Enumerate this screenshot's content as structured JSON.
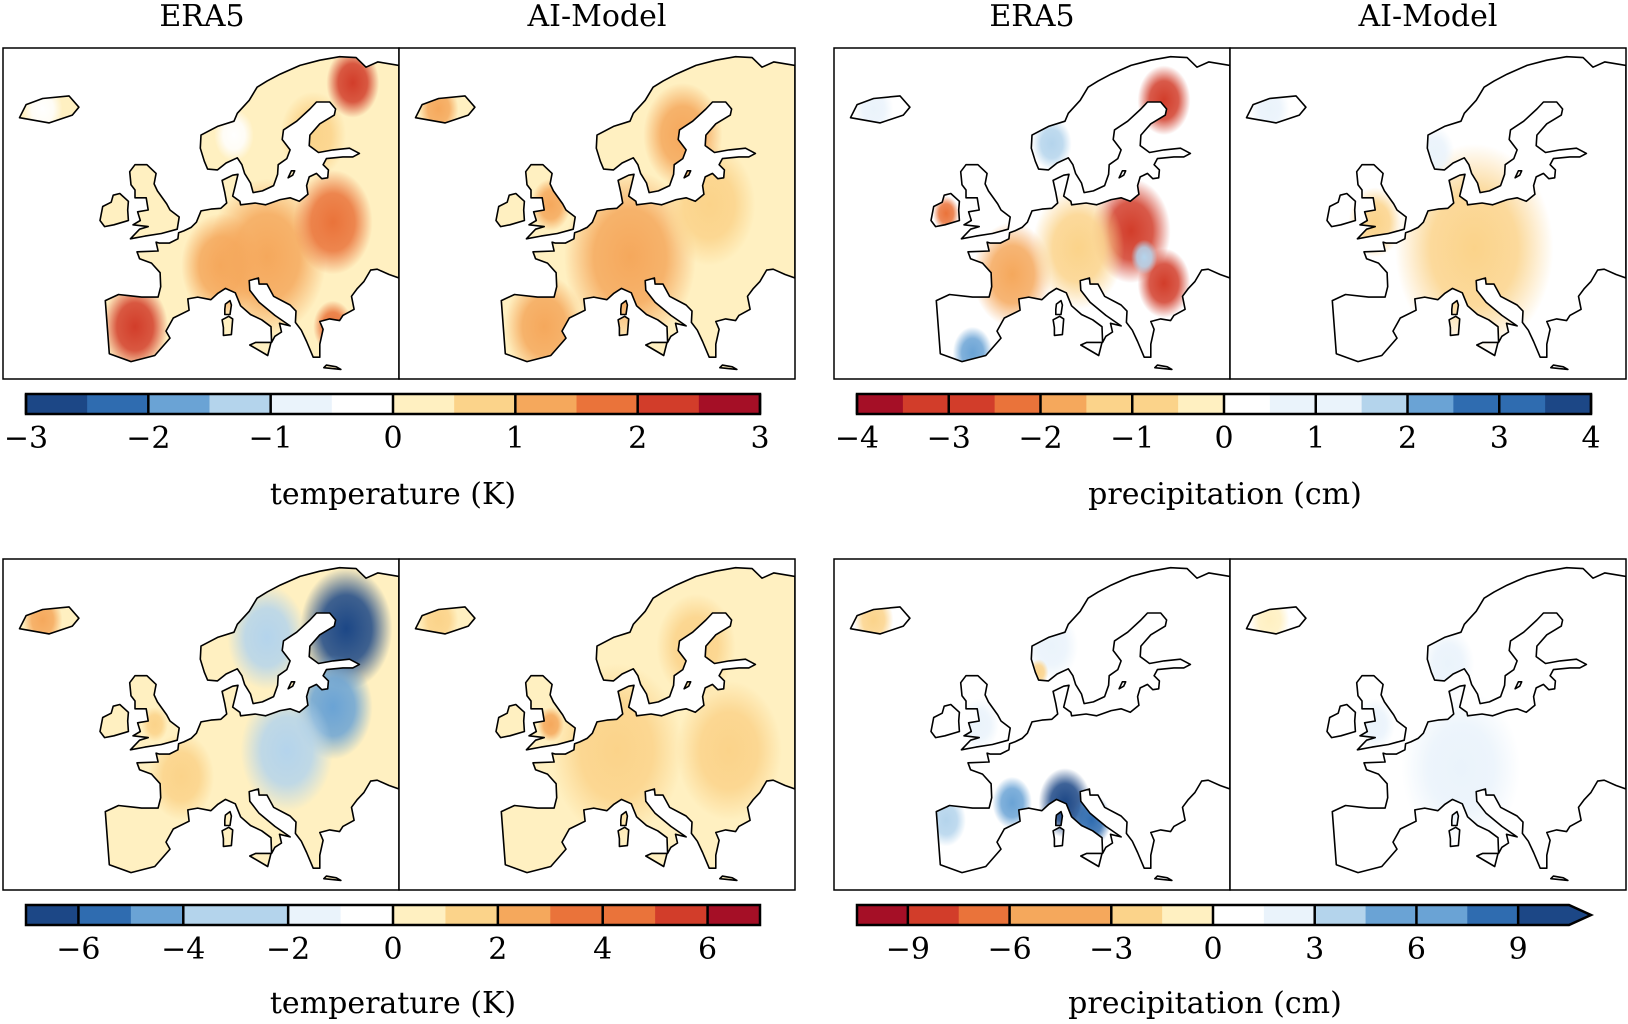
{
  "panel_titles": {
    "temperature_era5": "ERA5",
    "temperature_ai": "AI-Model",
    "precip_era5": "ERA5",
    "precip_ai": "AI-Model"
  },
  "colors": {
    "coast": "#000000",
    "cmap_temp": [
      "#1c4786",
      "#2f6cb0",
      "#6aa3d5",
      "#b4d4ec",
      "#eaf3fb",
      "#ffffff",
      "#fff0c1",
      "#fbd38a",
      "#f5a85c",
      "#ea733a",
      "#d23d2a",
      "#a50f26"
    ],
    "cmap_precip": [
      "#a50f26",
      "#d23d2a",
      "#ea733a",
      "#f5a85c",
      "#fbd38a",
      "#fff0c1",
      "#ffffff",
      "#eaf3fb",
      "#b4d4ec",
      "#6aa3d5",
      "#2f6cb0",
      "#1c4786"
    ]
  },
  "chart_data": [
    {
      "type": "heatmap",
      "row": "top",
      "variable": "temperature",
      "panels": [
        "ERA5",
        "AI-Model"
      ],
      "colorbar": {
        "label": "temperature (K)",
        "range": [
          -3,
          3
        ],
        "levels": [
          -3,
          -2.5,
          -2,
          -1.5,
          -1,
          -0.5,
          0,
          0.5,
          1,
          1.5,
          2,
          2.5,
          3
        ],
        "ticks": [
          -3,
          -2,
          -1,
          0,
          1,
          2,
          3
        ],
        "tick_labels": [
          "−3",
          "−2",
          "−1",
          "0",
          "1",
          "2",
          "3"
        ],
        "cmap": "cmap_temp",
        "extend": "neither"
      },
      "blobs": {
        "ERA5": [
          {
            "lon": -5,
            "lat": 40,
            "v": 2.3,
            "r": 5
          },
          {
            "lon": 15,
            "lat": 48,
            "v": 1.4,
            "r": 9
          },
          {
            "lon": 25,
            "lat": 52,
            "v": 1.6,
            "r": 6
          },
          {
            "lon": 28,
            "lat": 68,
            "v": 2.0,
            "r": 4
          },
          {
            "lon": 8,
            "lat": 47,
            "v": 1.1,
            "r": 6
          },
          {
            "lon": 25,
            "lat": 40,
            "v": 1.8,
            "r": 3
          },
          {
            "lon": 22,
            "lat": 62,
            "v": 0.9,
            "r": 5
          },
          {
            "lon": 10,
            "lat": 62,
            "v": -0.3,
            "r": 3
          },
          {
            "lon": -19,
            "lat": 65,
            "v": -0.4,
            "r": 3
          }
        ],
        "AI-Model": [
          {
            "lon": 10,
            "lat": 48,
            "v": 1.3,
            "r": 10
          },
          {
            "lon": -3,
            "lat": 40,
            "v": 1.0,
            "r": 6
          },
          {
            "lon": 22,
            "lat": 54,
            "v": 0.9,
            "r": 7
          },
          {
            "lon": 18,
            "lat": 62,
            "v": 1.0,
            "r": 6
          },
          {
            "lon": -19,
            "lat": 65,
            "v": 1.2,
            "r": 3
          },
          {
            "lon": -2,
            "lat": 54,
            "v": 1.1,
            "r": 3
          }
        ]
      }
    },
    {
      "type": "heatmap",
      "row": "top",
      "variable": "precipitation",
      "panels": [
        "ERA5",
        "AI-Model"
      ],
      "colorbar": {
        "label": "precipitation (cm)",
        "range": [
          -4,
          4
        ],
        "levels": [
          -4,
          -3.5,
          -3,
          -2.5,
          -2,
          -1.5,
          -1,
          -0.5,
          0,
          0.5,
          1,
          1.5,
          2,
          2.5,
          3,
          3.5,
          4
        ],
        "ticks": [
          -4,
          -3,
          -2,
          -1,
          0,
          1,
          2,
          3,
          4
        ],
        "tick_labels": [
          "−4",
          "−3",
          "−2",
          "−1",
          "0",
          "1",
          "2",
          "3",
          "4"
        ],
        "cmap": "cmap_precip",
        "extend": "neither"
      },
      "blobs": {
        "ERA5": [
          {
            "lon": 20,
            "lat": 51,
            "v": -3.2,
            "r": 6
          },
          {
            "lon": 25,
            "lat": 45,
            "v": -2.6,
            "r": 4
          },
          {
            "lon": 2,
            "lat": 46,
            "v": -2.0,
            "r": 6
          },
          {
            "lon": 25,
            "lat": 66,
            "v": -2.8,
            "r": 4
          },
          {
            "lon": 12,
            "lat": 49,
            "v": -1.4,
            "r": 7
          },
          {
            "lon": -8,
            "lat": 53,
            "v": -2.2,
            "r": 2
          },
          {
            "lon": -4,
            "lat": 37,
            "v": 2.0,
            "r": 3
          },
          {
            "lon": 8,
            "lat": 61,
            "v": 1.6,
            "r": 3
          },
          {
            "lon": 22,
            "lat": 48,
            "v": 1.5,
            "r": 2
          },
          {
            "lon": -19,
            "lat": 65,
            "v": 0.8,
            "r": 3
          }
        ],
        "AI-Model": [
          {
            "lon": 12,
            "lat": 49,
            "v": -1.0,
            "r": 12
          },
          {
            "lon": -3,
            "lat": 52,
            "v": -0.9,
            "r": 4
          },
          {
            "lon": 6,
            "lat": 60,
            "v": 0.9,
            "r": 3
          },
          {
            "lon": -19,
            "lat": 65,
            "v": 0.8,
            "r": 3
          }
        ]
      }
    },
    {
      "type": "heatmap",
      "row": "bottom",
      "variable": "temperature",
      "panels": [
        "ERA5",
        "AI-Model"
      ],
      "colorbar": {
        "label": "temperature (K)",
        "range": [
          -7,
          7
        ],
        "levels": [
          -7,
          -6,
          -5,
          -4,
          -3,
          -2,
          -1,
          0,
          1,
          2,
          3,
          4,
          5,
          6,
          7
        ],
        "ticks": [
          -6,
          -4,
          -2,
          0,
          2,
          4,
          6
        ],
        "tick_labels": [
          "−6",
          "−4",
          "−2",
          "0",
          "2",
          "4",
          "6"
        ],
        "cmap": "cmap_temp",
        "extend": "neither"
      },
      "blobs": {
        "ERA5": [
          {
            "lon": 27,
            "lat": 64,
            "v": -6.2,
            "r": 7
          },
          {
            "lon": 25,
            "lat": 55,
            "v": -5.0,
            "r": 6
          },
          {
            "lon": 15,
            "lat": 63,
            "v": -3.0,
            "r": 6
          },
          {
            "lon": 18,
            "lat": 50,
            "v": -2.5,
            "r": 7
          },
          {
            "lon": 2,
            "lat": 47,
            "v": 1.2,
            "r": 5
          },
          {
            "lon": -2,
            "lat": 53,
            "v": 1.6,
            "r": 2
          },
          {
            "lon": -19,
            "lat": 65,
            "v": 2.0,
            "r": 3
          }
        ],
        "AI-Model": [
          {
            "lon": 8,
            "lat": 50,
            "v": 1.8,
            "r": 10
          },
          {
            "lon": 20,
            "lat": 62,
            "v": 1.8,
            "r": 6
          },
          {
            "lon": 25,
            "lat": 50,
            "v": 1.0,
            "r": 8
          },
          {
            "lon": -2,
            "lat": 53,
            "v": 2.2,
            "r": 2
          },
          {
            "lon": -19,
            "lat": 65,
            "v": 1.8,
            "r": 3
          }
        ]
      }
    },
    {
      "type": "heatmap",
      "row": "bottom",
      "variable": "precipitation",
      "panels": [
        "ERA5",
        "AI-Model"
      ],
      "colorbar": {
        "label": "precipitation (cm)",
        "range": [
          -10.5,
          10.5
        ],
        "levels": [
          -10.5,
          -9,
          -7.5,
          -6,
          -4.5,
          -3,
          -1.5,
          0,
          1.5,
          3,
          4.5,
          6,
          7.5,
          9,
          10.5
        ],
        "ticks": [
          -9,
          -6,
          -3,
          0,
          3,
          6,
          9
        ],
        "tick_labels": [
          "−9",
          "−6",
          "−3",
          "0",
          "3",
          "6",
          "9"
        ],
        "cmap": "cmap_precip",
        "extend": "max"
      },
      "blobs": {
        "ERA5": [
          {
            "lon": 10,
            "lat": 44,
            "v": 10.5,
            "r": 4
          },
          {
            "lon": 14,
            "lat": 42,
            "v": 8.0,
            "r": 3
          },
          {
            "lon": 2,
            "lat": 44,
            "v": 6.5,
            "r": 3
          },
          {
            "lon": -8,
            "lat": 42,
            "v": 4.0,
            "r": 3
          },
          {
            "lon": 8,
            "lat": 62,
            "v": 2.5,
            "r": 4
          },
          {
            "lon": -3,
            "lat": 53,
            "v": 2.0,
            "r": 3
          },
          {
            "lon": 6,
            "lat": 59,
            "v": -2.0,
            "r": 1.5
          },
          {
            "lon": -19,
            "lat": 65,
            "v": -2.0,
            "r": 3
          }
        ],
        "AI-Model": [
          {
            "lon": 10,
            "lat": 48,
            "v": 2.0,
            "r": 9
          },
          {
            "lon": 8,
            "lat": 60,
            "v": 2.0,
            "r": 4
          },
          {
            "lon": -3,
            "lat": 53,
            "v": 1.5,
            "r": 3
          },
          {
            "lon": -19,
            "lat": 65,
            "v": -1.5,
            "r": 3
          }
        ]
      }
    }
  ]
}
